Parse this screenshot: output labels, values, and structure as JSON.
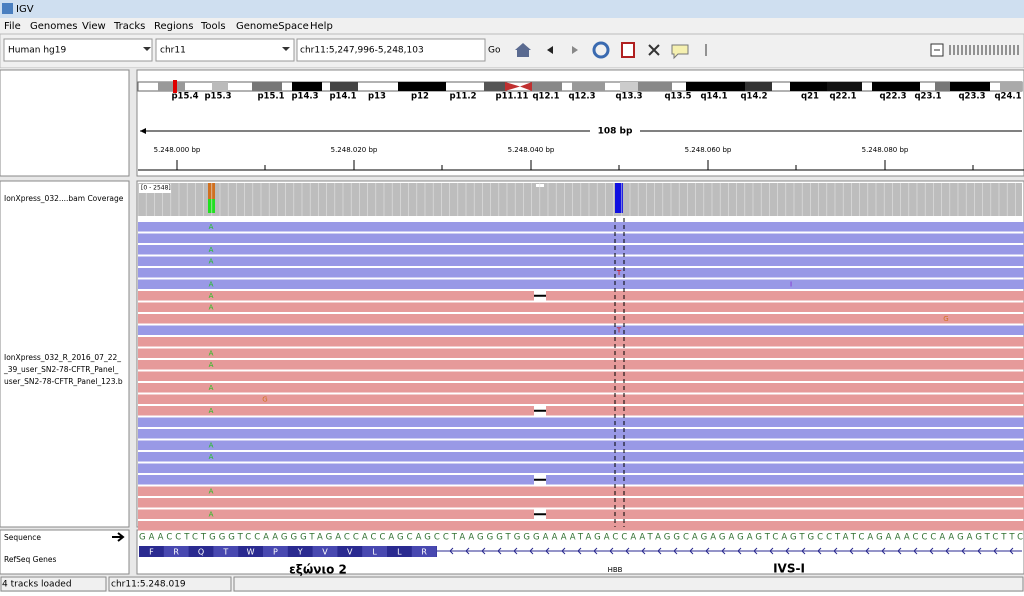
{
  "window_title": "IGV",
  "menu": [
    "File",
    "Genomes",
    "View",
    "Tracks",
    "Regions",
    "Tools",
    "GenomeSpace",
    "Help"
  ],
  "toolbar": {
    "genome": "Human hg19",
    "chromosome": "chr11",
    "locus": "chr11:5,247,996-5,248,103",
    "go": "Go"
  },
  "cytobands": [
    "p15.4",
    "p15.3",
    "p15.1",
    "p14.3",
    "p14.1",
    "p13",
    "p12",
    "p11.2",
    "p11.11",
    "q12.1",
    "q12.3",
    "q13.3",
    "q13.5",
    "q14.1",
    "q14.2",
    "q21",
    "q22.1",
    "q22.3",
    "q23.1",
    "q23.3",
    "q24.1"
  ],
  "ruler": {
    "span": "108 bp",
    "labels": [
      "5.248.000 bp",
      "5.248.020 bp",
      "5.248.040 bp",
      "5.248.060 bp",
      "5.248.080 bp"
    ]
  },
  "tracks": {
    "coverage_name": "IonXpress_032....bam Coverage",
    "coverage_range": "[0 - 2548]",
    "alignment_name": [
      "IonXpress_032_R_2016_07_22_",
      "_39_user_SN2-78-CFTR_Panel_",
      "user_SN2-78-CFTR_Panel_123.b"
    ],
    "sequence_name": "Sequence",
    "refseq_name": "RefSeq Genes"
  },
  "mismatches": [
    "A",
    "A",
    "A",
    "A",
    "A",
    "T",
    "I",
    "A",
    "G",
    "T",
    "A",
    "A",
    "A",
    "G",
    "A",
    "A",
    "A",
    "A",
    "A"
  ],
  "sequence": "GAACCTCTGGGTCCAAGGGTAGACCACCAGCAGCCTAAGGGTGGGAAAATAGACCAATAGGCAGAGAGAGTCAGTGCCTATCAGAAACCCAAGAGTCTTC",
  "amino_acids": [
    "F",
    "R",
    "Q",
    "T",
    "W",
    "P",
    "Y",
    "V",
    "V",
    "L",
    "L",
    "R"
  ],
  "annotations": {
    "gene": "HBB",
    "exon": "εξώνιο 2",
    "intron": "IVS-I"
  },
  "status": {
    "message": "4 tracks loaded",
    "position": "chr11:5.248.019"
  }
}
